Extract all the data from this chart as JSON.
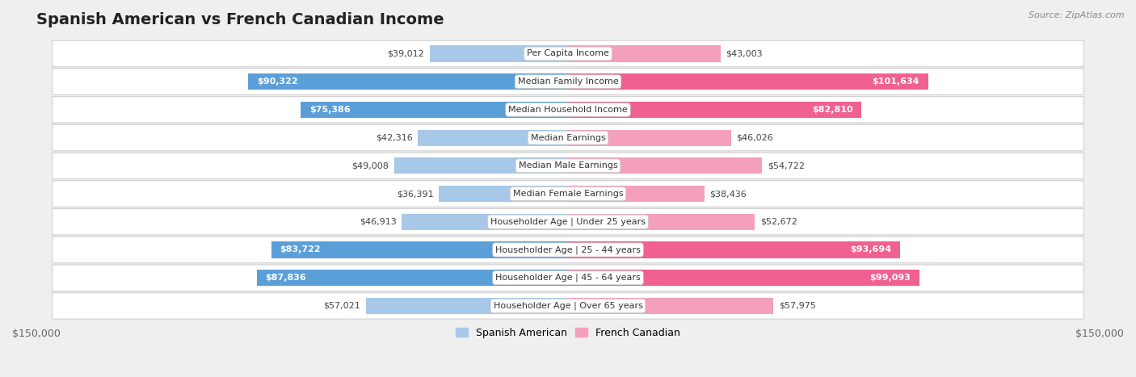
{
  "title": "Spanish American vs French Canadian Income",
  "source": "Source: ZipAtlas.com",
  "categories": [
    "Per Capita Income",
    "Median Family Income",
    "Median Household Income",
    "Median Earnings",
    "Median Male Earnings",
    "Median Female Earnings",
    "Householder Age | Under 25 years",
    "Householder Age | 25 - 44 years",
    "Householder Age | 45 - 64 years",
    "Householder Age | Over 65 years"
  ],
  "spanish_american": [
    39012,
    90322,
    75386,
    42316,
    49008,
    36391,
    46913,
    83722,
    87836,
    57021
  ],
  "french_canadian": [
    43003,
    101634,
    82810,
    46026,
    54722,
    38436,
    52672,
    93694,
    99093,
    57975
  ],
  "spanish_color_light": "#a8c8e8",
  "spanish_color_dark": "#5b9fd8",
  "french_color_light": "#f4a0bc",
  "french_color_dark": "#f06090",
  "bar_height": 0.58,
  "xlim": 150000,
  "xlabel_left": "$150,000",
  "xlabel_right": "$150,000",
  "legend_spanish": "Spanish American",
  "legend_french": "French Canadian",
  "background_color": "#efefef",
  "row_bg_color": "#ffffff",
  "threshold_dark": 70000,
  "title_fontsize": 14,
  "label_fontsize": 8,
  "value_fontsize": 8
}
